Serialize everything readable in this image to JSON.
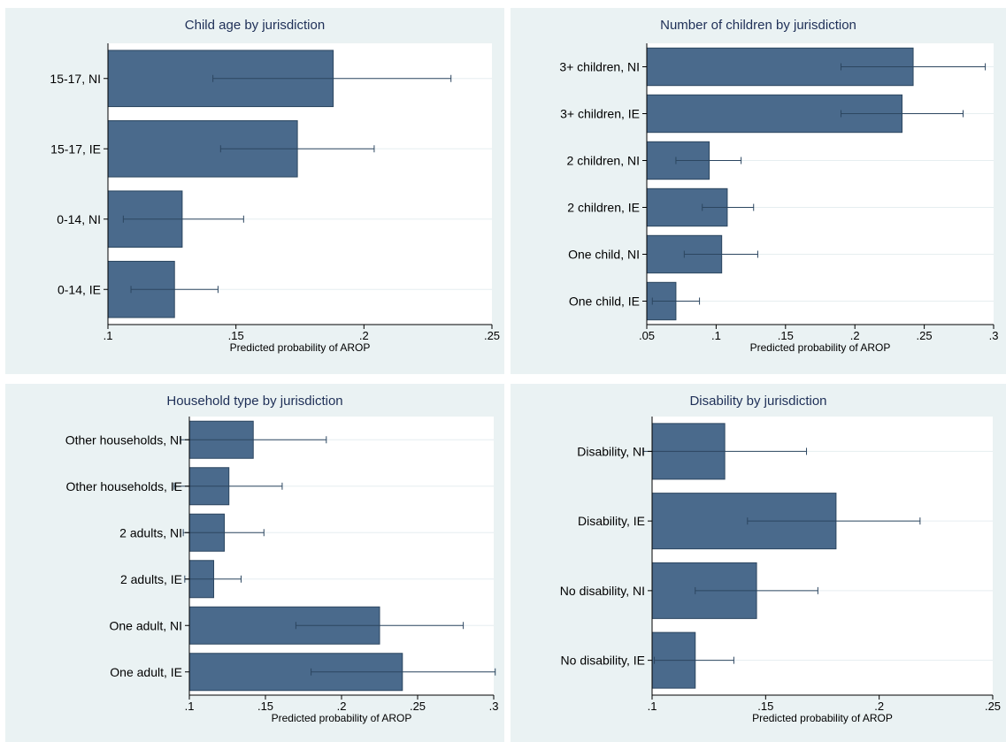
{
  "colors": {
    "panel_background": "#eaf2f3",
    "plot_background": "#ffffff",
    "bar_fill": "#4a6a8c",
    "bar_stroke": "#2c4660",
    "error_bar": "#2c4660",
    "grid": "#e6eef0",
    "title": "#1e2f57"
  },
  "chart_data": [
    {
      "type": "bar",
      "orientation": "horizontal",
      "title": "Child age by jurisdiction",
      "xlabel": "Predicted probability of AROP",
      "categories": [
        "15-17, NI",
        "15-17, IE",
        "0-14, NI",
        "0-14, IE"
      ],
      "values": [
        0.188,
        0.174,
        0.129,
        0.126
      ],
      "ci_low": [
        0.141,
        0.144,
        0.106,
        0.109
      ],
      "ci_high": [
        0.234,
        0.204,
        0.153,
        0.143
      ],
      "xlim": [
        0.1,
        0.25
      ],
      "xticks": [
        0.1,
        0.15,
        0.2,
        0.25
      ],
      "xtick_labels": [
        ".1",
        ".15",
        ".2",
        ".25"
      ],
      "grid": true
    },
    {
      "type": "bar",
      "orientation": "horizontal",
      "title": "Number of children by jurisdiction",
      "xlabel": "Predicted probability of AROP",
      "categories": [
        "3+ children, NI",
        "3+ children, IE",
        "2 children, NI",
        "2 children, IE",
        "One child, NI",
        "One child, IE"
      ],
      "values": [
        0.242,
        0.234,
        0.095,
        0.108,
        0.104,
        0.071
      ],
      "ci_low": [
        0.19,
        0.19,
        0.071,
        0.09,
        0.077,
        0.054
      ],
      "ci_high": [
        0.294,
        0.278,
        0.118,
        0.127,
        0.13,
        0.088
      ],
      "xlim": [
        0.05,
        0.3
      ],
      "xticks": [
        0.05,
        0.1,
        0.15,
        0.2,
        0.25,
        0.3
      ],
      "xtick_labels": [
        ".05",
        ".1",
        ".15",
        ".2",
        ".25",
        ".3"
      ],
      "grid": true
    },
    {
      "type": "bar",
      "orientation": "horizontal",
      "title": "Household type by jurisdiction",
      "xlabel": "Predicted probability of AROP",
      "categories": [
        "Other households, NI",
        "Other households, IE",
        "2 adults, NI",
        "2 adults, IE",
        "One adult, NI",
        "One adult, IE"
      ],
      "values": [
        0.142,
        0.126,
        0.123,
        0.116,
        0.225,
        0.24
      ],
      "ci_low": [
        0.094,
        0.09,
        0.096,
        0.097,
        0.17,
        0.18
      ],
      "ci_high": [
        0.19,
        0.161,
        0.149,
        0.134,
        0.28,
        0.301
      ],
      "xlim": [
        0.1,
        0.3
      ],
      "xticks": [
        0.1,
        0.15,
        0.2,
        0.25,
        0.3
      ],
      "xtick_labels": [
        ".1",
        ".15",
        ".2",
        ".25",
        ".3"
      ],
      "grid": true
    },
    {
      "type": "bar",
      "orientation": "horizontal",
      "title": "Disability by jurisdiction",
      "xlabel": "Predicted probability of AROP",
      "categories": [
        "Disability, NI",
        "Disability, IE",
        "No disability, NI",
        "No disability, IE"
      ],
      "values": [
        0.132,
        0.181,
        0.146,
        0.119
      ],
      "ci_low": [
        0.096,
        0.142,
        0.119,
        0.101
      ],
      "ci_high": [
        0.168,
        0.218,
        0.173,
        0.136
      ],
      "xlim": [
        0.1,
        0.25
      ],
      "xticks": [
        0.1,
        0.15,
        0.2,
        0.25
      ],
      "xtick_labels": [
        ".1",
        ".15",
        ".2",
        ".25"
      ],
      "grid": true
    }
  ]
}
